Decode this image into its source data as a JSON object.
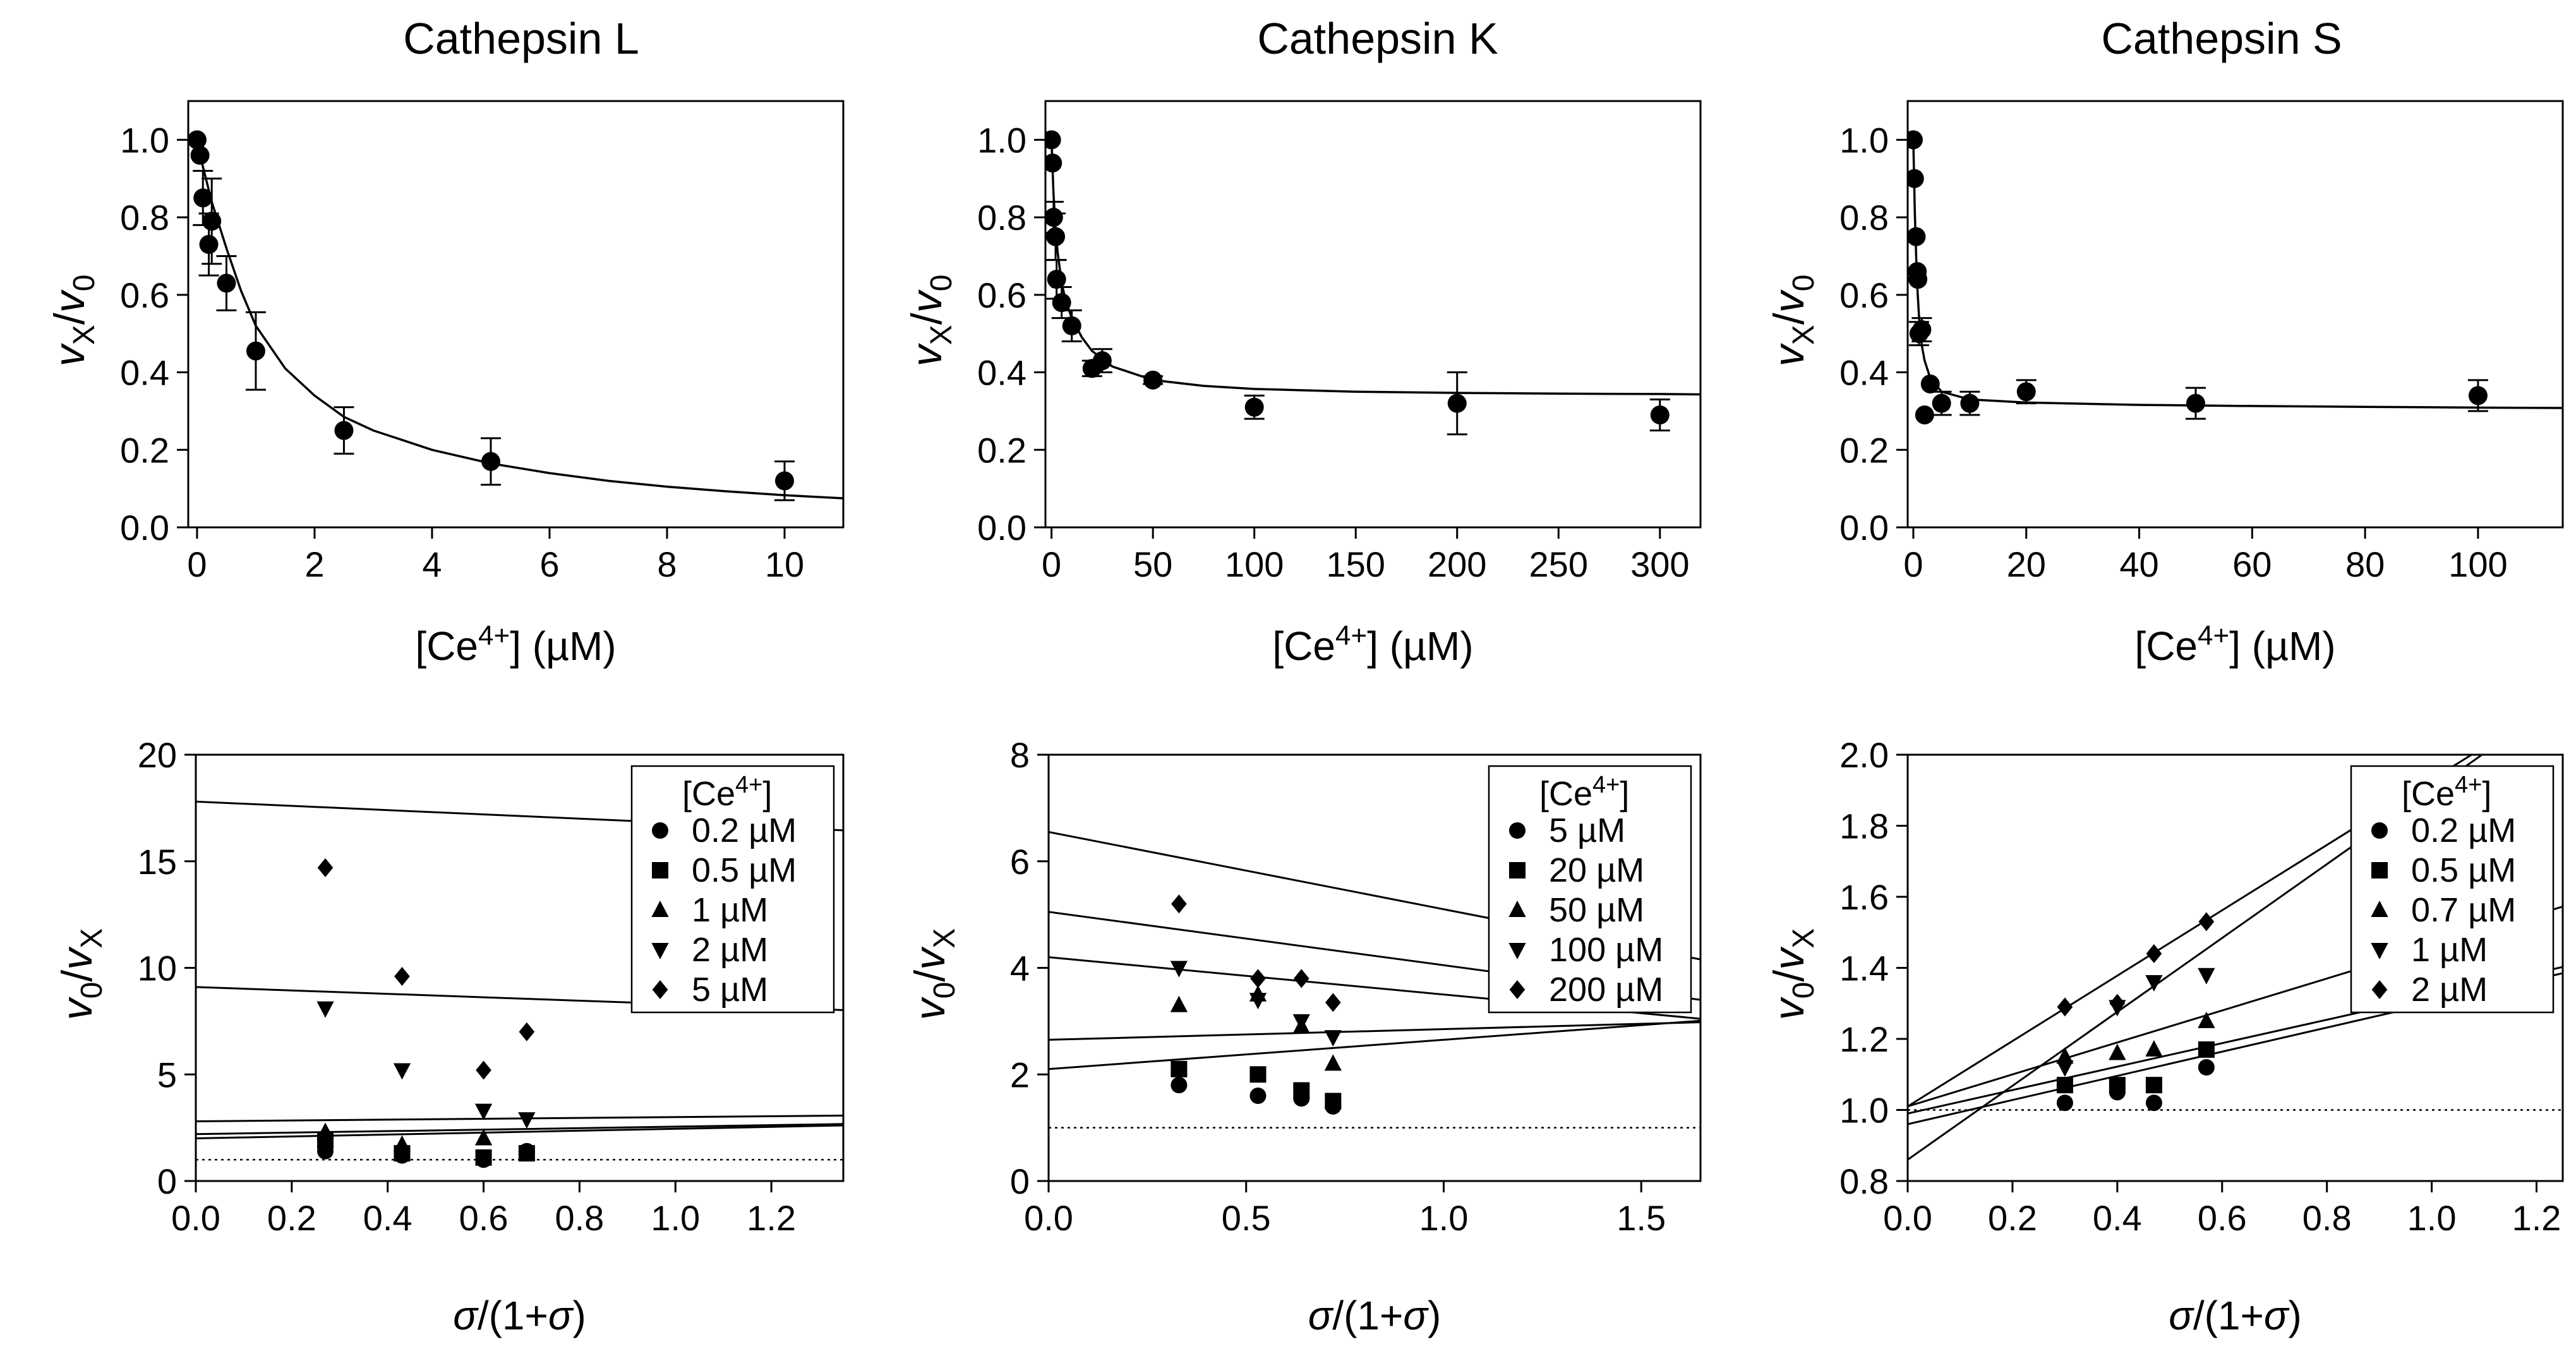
{
  "chart_data": [
    {
      "type": "scatter",
      "title": "Cathepsin L",
      "xlabel": "[Ce4+] (µM)",
      "ylabel": "vX/v0",
      "xlim": [
        -0.15,
        11
      ],
      "ylim": [
        0,
        1.1
      ],
      "xticks": [
        0,
        2,
        4,
        6,
        8,
        10
      ],
      "yticks": [
        0.0,
        0.2,
        0.4,
        0.6,
        0.8,
        1.0
      ],
      "grid": false,
      "points": [
        {
          "x": 0,
          "y": 1.0,
          "err": 0
        },
        {
          "x": 0.05,
          "y": 0.96,
          "err": 0
        },
        {
          "x": 0.1,
          "y": 0.85,
          "err": 0.07
        },
        {
          "x": 0.2,
          "y": 0.73,
          "err": 0.08
        },
        {
          "x": 0.25,
          "y": 0.79,
          "err": 0.11
        },
        {
          "x": 0.5,
          "y": 0.63,
          "err": 0.07
        },
        {
          "x": 1,
          "y": 0.455,
          "err": 0.1
        },
        {
          "x": 2.5,
          "y": 0.25,
          "err": 0.06
        },
        {
          "x": 5,
          "y": 0.17,
          "err": 0.06
        },
        {
          "x": 10,
          "y": 0.12,
          "err": 0.05
        }
      ],
      "fit": {
        "x": [
          0,
          0.1,
          0.25,
          0.5,
          0.75,
          1,
          1.5,
          2,
          2.5,
          3,
          4,
          5,
          6,
          7,
          8,
          9,
          10,
          11
        ],
        "y": [
          1.0,
          0.93,
          0.84,
          0.72,
          0.61,
          0.52,
          0.41,
          0.34,
          0.285,
          0.25,
          0.2,
          0.165,
          0.14,
          0.12,
          0.105,
          0.093,
          0.083,
          0.075
        ]
      }
    },
    {
      "type": "scatter",
      "title": "Cathepsin K",
      "xlabel": "[Ce4+] (µM)",
      "ylabel": "vX/v0",
      "xlim": [
        -3,
        320
      ],
      "ylim": [
        0,
        1.1
      ],
      "xticks": [
        0,
        50,
        100,
        150,
        200,
        250,
        300
      ],
      "yticks": [
        0.0,
        0.2,
        0.4,
        0.6,
        0.8,
        1.0
      ],
      "grid": false,
      "points": [
        {
          "x": 0,
          "y": 1.0,
          "err": 0
        },
        {
          "x": 0.5,
          "y": 0.94,
          "err": 0
        },
        {
          "x": 1,
          "y": 0.8,
          "err": 0.04
        },
        {
          "x": 2,
          "y": 0.75,
          "err": 0.06
        },
        {
          "x": 2.5,
          "y": 0.64,
          "err": 0.05
        },
        {
          "x": 5,
          "y": 0.58,
          "err": 0.04
        },
        {
          "x": 10,
          "y": 0.52,
          "err": 0.04
        },
        {
          "x": 20,
          "y": 0.41,
          "err": 0.02
        },
        {
          "x": 25,
          "y": 0.43,
          "err": 0.03
        },
        {
          "x": 50,
          "y": 0.38,
          "err": 0.01
        },
        {
          "x": 100,
          "y": 0.31,
          "err": 0.03
        },
        {
          "x": 200,
          "y": 0.32,
          "err": 0.08
        },
        {
          "x": 300,
          "y": 0.29,
          "err": 0.04
        }
      ],
      "fit": {
        "x": [
          0,
          1,
          2,
          3,
          5,
          7,
          10,
          15,
          20,
          30,
          50,
          75,
          100,
          150,
          200,
          250,
          300,
          320
        ],
        "y": [
          1.0,
          0.86,
          0.77,
          0.71,
          0.63,
          0.585,
          0.54,
          0.49,
          0.455,
          0.415,
          0.38,
          0.365,
          0.357,
          0.35,
          0.347,
          0.345,
          0.344,
          0.343
        ]
      }
    },
    {
      "type": "scatter",
      "title": "Cathepsin S",
      "xlabel": "[Ce4+] (µM)",
      "ylabel": "vX/v0",
      "xlim": [
        -1,
        115
      ],
      "ylim": [
        0,
        1.1
      ],
      "xticks": [
        0,
        20,
        40,
        60,
        80,
        100
      ],
      "yticks": [
        0.0,
        0.2,
        0.4,
        0.6,
        0.8,
        1.0
      ],
      "grid": false,
      "points": [
        {
          "x": 0,
          "y": 1.0,
          "err": 0
        },
        {
          "x": 0.2,
          "y": 0.9,
          "err": 0
        },
        {
          "x": 0.5,
          "y": 0.75,
          "err": 0
        },
        {
          "x": 0.7,
          "y": 0.66,
          "err": 0
        },
        {
          "x": 0.8,
          "y": 0.64,
          "err": 0
        },
        {
          "x": 1,
          "y": 0.5,
          "err": 0.03
        },
        {
          "x": 1.5,
          "y": 0.51,
          "err": 0.03
        },
        {
          "x": 2,
          "y": 0.29,
          "err": 0
        },
        {
          "x": 3,
          "y": 0.37,
          "err": 0
        },
        {
          "x": 5,
          "y": 0.32,
          "err": 0.03
        },
        {
          "x": 10,
          "y": 0.32,
          "err": 0.03
        },
        {
          "x": 20,
          "y": 0.35,
          "err": 0.03
        },
        {
          "x": 50,
          "y": 0.32,
          "err": 0.04
        },
        {
          "x": 100,
          "y": 0.34,
          "err": 0.04
        }
      ],
      "fit": {
        "x": [
          0,
          0.25,
          0.5,
          0.75,
          1,
          1.5,
          2,
          3,
          5,
          10,
          20,
          40,
          60,
          80,
          100,
          115
        ],
        "y": [
          1.0,
          0.82,
          0.7,
          0.61,
          0.545,
          0.47,
          0.43,
          0.385,
          0.35,
          0.33,
          0.322,
          0.316,
          0.313,
          0.311,
          0.309,
          0.308
        ]
      }
    },
    {
      "type": "scatter",
      "xlabel": "σ/(1+σ)",
      "ylabel": "v0/vX",
      "xlim": [
        0,
        1.35
      ],
      "ylim": [
        0,
        20
      ],
      "xticks": [
        0.0,
        0.2,
        0.4,
        0.6,
        0.8,
        1.0,
        1.2
      ],
      "yticks": [
        0,
        5,
        10,
        15,
        20
      ],
      "grid": false,
      "legend_title": "[Ce4+]",
      "legend_position": "top-right",
      "reference_line_y": 1,
      "series": [
        {
          "name": "0.2 µM",
          "marker": "circle",
          "x": [
            0.27,
            0.43,
            0.6,
            0.69
          ],
          "y": [
            1.4,
            1.2,
            1.0,
            1.4
          ],
          "line": [
            2.0,
            0.45
          ]
        },
        {
          "name": "0.5 µM",
          "marker": "square",
          "x": [
            0.27,
            0.43,
            0.6,
            0.69
          ],
          "y": [
            1.9,
            1.3,
            1.1,
            1.3
          ],
          "line": [
            2.2,
            0.35
          ]
        },
        {
          "name": "1 µM",
          "marker": "triangle-up",
          "x": [
            0.27,
            0.43,
            0.6,
            0.69
          ],
          "y": [
            2.3,
            1.7,
            2.0,
            1.3
          ],
          "line": [
            2.8,
            0.2
          ]
        },
        {
          "name": "2 µM",
          "marker": "triangle-down",
          "x": [
            0.27,
            0.43,
            0.6,
            0.69
          ],
          "y": [
            8.1,
            5.2,
            3.3,
            2.9
          ],
          "line": [
            9.1,
            -0.8
          ]
        },
        {
          "name": "5 µM",
          "marker": "diamond",
          "x": [
            0.27,
            0.43,
            0.6,
            0.69
          ],
          "y": [
            14.7,
            9.6,
            5.2,
            7.0
          ],
          "line": [
            17.8,
            -1.0
          ]
        }
      ]
    },
    {
      "type": "scatter",
      "xlabel": "σ/(1+σ)",
      "ylabel": "v0/vX",
      "xlim": [
        0,
        1.65
      ],
      "ylim": [
        0,
        8
      ],
      "xticks": [
        0.0,
        0.5,
        1.0,
        1.5
      ],
      "yticks": [
        0,
        2,
        4,
        6,
        8
      ],
      "grid": false,
      "legend_title": "[Ce4+]",
      "legend_position": "top-right",
      "reference_line_y": 1,
      "series": [
        {
          "name": "5 µM",
          "marker": "circle",
          "x": [
            0.33,
            0.53,
            0.64,
            0.72
          ],
          "y": [
            1.8,
            1.6,
            1.55,
            1.4
          ],
          "line": [
            2.1,
            0.55
          ]
        },
        {
          "name": "20 µM",
          "marker": "square",
          "x": [
            0.33,
            0.53,
            0.64,
            0.72
          ],
          "y": [
            2.1,
            2.0,
            1.7,
            1.5
          ],
          "line": [
            2.65,
            0.2
          ]
        },
        {
          "name": "50 µM",
          "marker": "triangle-up",
          "x": [
            0.33,
            0.53,
            0.64,
            0.72
          ],
          "y": [
            3.3,
            3.5,
            2.9,
            2.2
          ],
          "line": [
            4.2,
            -0.7
          ]
        },
        {
          "name": "100 µM",
          "marker": "triangle-down",
          "x": [
            0.33,
            0.53,
            0.64,
            0.72
          ],
          "y": [
            4.0,
            3.4,
            3.0,
            2.7
          ],
          "line": [
            5.05,
            -1.0
          ]
        },
        {
          "name": "200 µM",
          "marker": "diamond",
          "x": [
            0.33,
            0.53,
            0.64,
            0.72
          ],
          "y": [
            5.2,
            3.8,
            3.8,
            3.35
          ],
          "line": [
            6.55,
            -1.45
          ]
        }
      ]
    },
    {
      "type": "scatter",
      "xlabel": "σ/(1+σ)",
      "ylabel": "v0/vX",
      "xlim": [
        0,
        1.25
      ],
      "ylim": [
        0.8,
        2.0
      ],
      "xticks": [
        0.0,
        0.2,
        0.4,
        0.6,
        0.8,
        1.0,
        1.2
      ],
      "yticks": [
        0.8,
        1.0,
        1.2,
        1.4,
        1.6,
        1.8,
        2.0
      ],
      "grid": false,
      "legend_title": "[Ce4+]",
      "legend_position": "top-right",
      "reference_line_y": 1,
      "series": [
        {
          "name": "0.2 µM",
          "marker": "circle",
          "x": [
            0.3,
            0.4,
            0.47,
            0.57
          ],
          "y": [
            1.02,
            1.05,
            1.02,
            1.12
          ],
          "line": [
            0.96,
            0.34
          ]
        },
        {
          "name": "0.5 µM",
          "marker": "square",
          "x": [
            0.3,
            0.4,
            0.47,
            0.57
          ],
          "y": [
            1.07,
            1.07,
            1.07,
            1.17
          ],
          "line": [
            0.99,
            0.33
          ]
        },
        {
          "name": "0.7 µM",
          "marker": "triangle-up",
          "x": [
            0.3,
            0.4,
            0.47,
            0.57
          ],
          "y": [
            1.15,
            1.16,
            1.17,
            1.25
          ],
          "line": [
            1.01,
            0.45
          ]
        },
        {
          "name": "1 µM",
          "marker": "triangle-down",
          "x": [
            0.3,
            0.4,
            0.47,
            0.57
          ],
          "y": [
            1.12,
            1.29,
            1.36,
            1.38
          ],
          "line": [
            0.86,
            1.04
          ]
        },
        {
          "name": "2 µM",
          "marker": "diamond",
          "x": [
            0.3,
            0.4,
            0.47,
            0.57
          ],
          "y": [
            1.29,
            1.3,
            1.44,
            1.53
          ],
          "line": [
            1.01,
            0.92
          ]
        }
      ]
    }
  ]
}
